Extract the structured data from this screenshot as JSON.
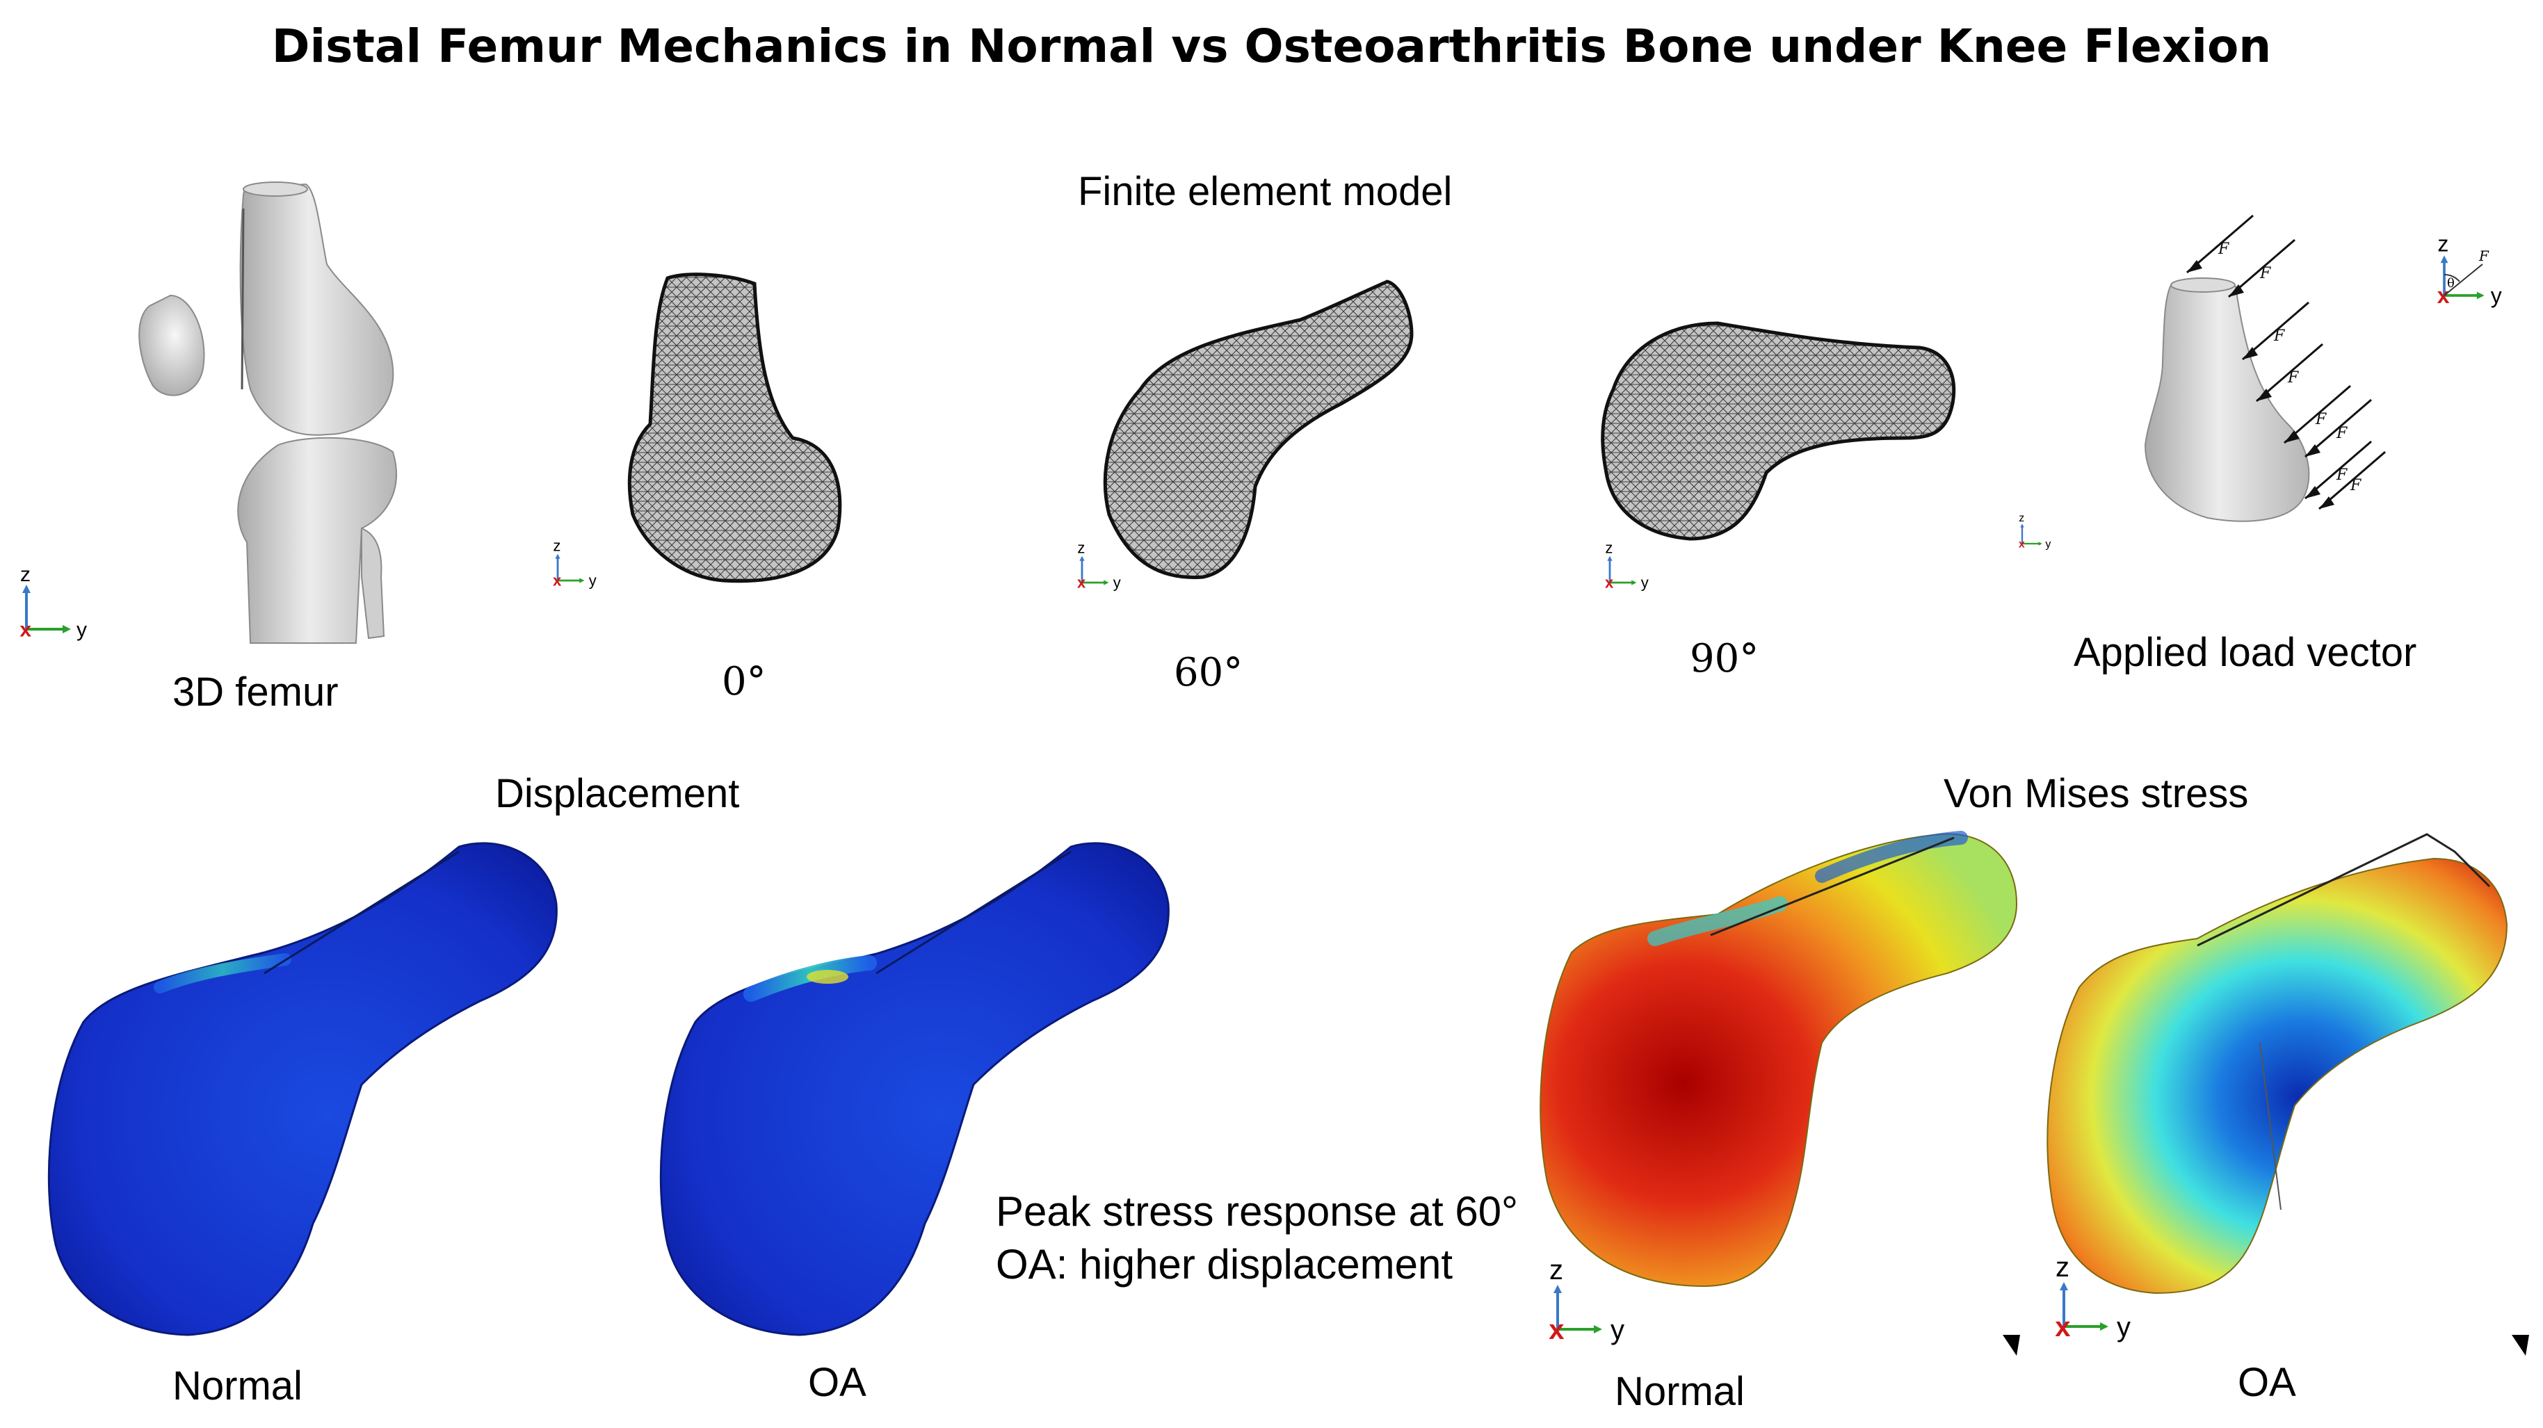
{
  "title": "Distal Femur Mechanics in Normal vs Osteoarthritis Bone under Knee Flexion",
  "sections": {
    "fe_model": "Finite element model",
    "displacement": "Displacement",
    "von_mises": "Von Mises stress"
  },
  "top_labels": {
    "femur3d": "3D femur",
    "angle0": "0°",
    "angle60": "60°",
    "angle90": "90°",
    "load": "Applied load vector"
  },
  "bottom_labels": {
    "disp_normal": "Normal",
    "disp_oa": "OA",
    "stress_normal": "Normal",
    "stress_oa": "OA"
  },
  "notes": {
    "line1": "Peak stress response at 60°",
    "line2": "OA: higher displacement"
  },
  "axes": {
    "z": "z",
    "y": "y",
    "x": "x"
  },
  "load_symbol": "F",
  "angle_symbol": "θ",
  "colors": {
    "bone": "#d9d9d9",
    "mesh": "#3a3a3a",
    "disp_blue": "#1428c8",
    "stress_red": "#d01818",
    "axis_z": "#3a78c8",
    "axis_y": "#2aa02a",
    "axis_x": "#d01818"
  }
}
